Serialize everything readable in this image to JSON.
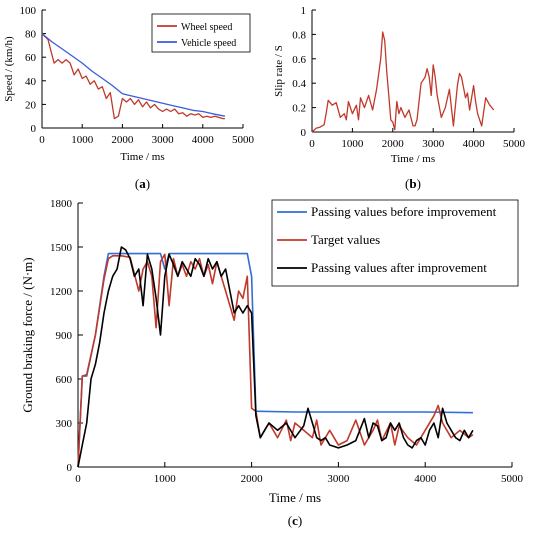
{
  "chart_data": [
    {
      "id": "a",
      "type": "line",
      "panel_label": "a",
      "xlabel": "Time / ms",
      "ylabel": "Speed / (km/h)",
      "xlim": [
        0,
        5000
      ],
      "ylim": [
        0,
        100
      ],
      "xticks": [
        "0",
        "1000",
        "2000",
        "3000",
        "4000",
        "5000"
      ],
      "yticks": [
        "0",
        "20",
        "40",
        "60",
        "80",
        "100"
      ],
      "legend_position": "top-right",
      "series": [
        {
          "name": "Wheel speed",
          "color": "#c0392b",
          "x": [
            0,
            150,
            300,
            400,
            500,
            600,
            700,
            800,
            900,
            1000,
            1100,
            1200,
            1300,
            1400,
            1500,
            1600,
            1700,
            1800,
            1900,
            2000,
            2100,
            2200,
            2300,
            2400,
            2500,
            2600,
            2700,
            2800,
            2900,
            3000,
            3100,
            3200,
            3300,
            3400,
            3500,
            3600,
            3700,
            3800,
            3900,
            4000,
            4100,
            4200,
            4300,
            4400,
            4500,
            4550
          ],
          "values": [
            80,
            75,
            55,
            58,
            55,
            58,
            55,
            45,
            50,
            42,
            44,
            37,
            40,
            33,
            35,
            25,
            30,
            8,
            10,
            25,
            22,
            25,
            20,
            24,
            18,
            22,
            17,
            20,
            16,
            14,
            16,
            14,
            16,
            12,
            13,
            10,
            12,
            11,
            12,
            9,
            10,
            9,
            10,
            9,
            8,
            8
          ]
        },
        {
          "name": "Vehicle speed",
          "color": "#3b5bdb",
          "x": [
            0,
            250,
            500,
            750,
            1000,
            1250,
            1500,
            1750,
            2000,
            2250,
            2500,
            2750,
            3000,
            3250,
            3500,
            3750,
            4000,
            4250,
            4550
          ],
          "values": [
            80,
            73,
            67,
            61,
            55,
            48,
            42,
            36,
            29,
            27,
            25,
            23,
            21,
            19,
            17,
            15,
            14,
            12,
            10
          ]
        }
      ]
    },
    {
      "id": "b",
      "type": "line",
      "panel_label": "b",
      "xlabel": "Time / ms",
      "ylabel": "Slip rate / S",
      "xlim": [
        0,
        5000
      ],
      "ylim": [
        0,
        1
      ],
      "xticks": [
        "0",
        "1000",
        "2000",
        "3000",
        "4000",
        "5000"
      ],
      "yticks": [
        "0",
        "0.2",
        "0.4",
        "0.6",
        "0.8",
        "1"
      ],
      "series": [
        {
          "color": "#c0392b",
          "x": [
            0,
            100,
            200,
            300,
            350,
            400,
            500,
            600,
            700,
            800,
            850,
            900,
            1000,
            1100,
            1150,
            1200,
            1300,
            1400,
            1500,
            1600,
            1700,
            1750,
            1800,
            1850,
            1900,
            1950,
            2000,
            2050,
            2100,
            2150,
            2200,
            2300,
            2400,
            2500,
            2550,
            2600,
            2700,
            2800,
            2850,
            2900,
            2950,
            3000,
            3050,
            3100,
            3200,
            3300,
            3400,
            3500,
            3600,
            3650,
            3700,
            3800,
            3850,
            3900,
            4000,
            4050,
            4100,
            4200,
            4300,
            4400,
            4500
          ],
          "values": [
            0,
            0.03,
            0.04,
            0.06,
            0.15,
            0.26,
            0.22,
            0.24,
            0.12,
            0.15,
            0.1,
            0.25,
            0.15,
            0.22,
            0.1,
            0.28,
            0.2,
            0.3,
            0.18,
            0.35,
            0.6,
            0.82,
            0.75,
            0.5,
            0.3,
            0.1,
            0.08,
            0.02,
            0.25,
            0.15,
            0.2,
            0.12,
            0.18,
            0.05,
            0.05,
            0.1,
            0.4,
            0.45,
            0.52,
            0.45,
            0.3,
            0.55,
            0.45,
            0.3,
            0.12,
            0.2,
            0.35,
            0.05,
            0.38,
            0.48,
            0.45,
            0.28,
            0.32,
            0.18,
            0.38,
            0.25,
            0.15,
            0.05,
            0.28,
            0.22,
            0.18
          ]
        }
      ]
    },
    {
      "id": "c",
      "type": "line",
      "panel_label": "c",
      "xlabel": "Time / ms",
      "ylabel": "Ground braking force / (N·m)",
      "xlim": [
        0,
        5000
      ],
      "ylim": [
        0,
        1800
      ],
      "xticks": [
        "0",
        "1000",
        "2000",
        "3000",
        "4000",
        "5000"
      ],
      "yticks": [
        "0",
        "300",
        "600",
        "900",
        "1200",
        "1500",
        "1800"
      ],
      "legend_position": "top-right",
      "series": [
        {
          "name": "Passing values before improvement",
          "color": "#2f6fd6",
          "x": [
            0,
            50,
            100,
            200,
            300,
            350,
            400,
            450,
            500,
            600,
            700,
            750,
            800,
            900,
            950,
            1000,
            1050,
            1100,
            1150,
            1200,
            1300,
            1400,
            1500,
            1600,
            1700,
            1750,
            1800,
            1850,
            1900,
            1950,
            2000,
            2050,
            2100,
            2500,
            3000,
            3500,
            4000,
            4550
          ],
          "values": [
            0,
            620,
            620,
            900,
            1300,
            1455,
            1455,
            1455,
            1455,
            1455,
            1455,
            1455,
            1455,
            1455,
            1455,
            1350,
            1455,
            1455,
            1455,
            1455,
            1455,
            1455,
            1455,
            1455,
            1455,
            1455,
            1455,
            1455,
            1455,
            1455,
            1300,
            380,
            380,
            375,
            375,
            375,
            375,
            370
          ]
        },
        {
          "name": "Target values",
          "color": "#c0392b",
          "x": [
            0,
            50,
            100,
            200,
            300,
            350,
            400,
            500,
            600,
            700,
            750,
            800,
            850,
            900,
            950,
            1000,
            1050,
            1100,
            1150,
            1200,
            1250,
            1300,
            1350,
            1400,
            1450,
            1500,
            1550,
            1600,
            1650,
            1700,
            1750,
            1800,
            1850,
            1900,
            1950,
            2000,
            2050,
            2100,
            2150,
            2200,
            2300,
            2400,
            2450,
            2500,
            2600,
            2700,
            2750,
            2800,
            2900,
            3000,
            3100,
            3200,
            3300,
            3400,
            3450,
            3500,
            3600,
            3650,
            3700,
            3800,
            3900,
            4000,
            4100,
            4150,
            4200,
            4300,
            4400,
            4500,
            4550
          ],
          "values": [
            0,
            620,
            630,
            900,
            1280,
            1420,
            1440,
            1440,
            1430,
            1200,
            1350,
            1400,
            1300,
            950,
            1400,
            1450,
            1100,
            1420,
            1300,
            1380,
            1300,
            1400,
            1350,
            1420,
            1300,
            1380,
            1250,
            1400,
            1300,
            1200,
            1100,
            1000,
            1200,
            1150,
            1300,
            400,
            380,
            200,
            250,
            300,
            200,
            320,
            180,
            300,
            250,
            200,
            320,
            150,
            250,
            150,
            180,
            320,
            150,
            250,
            320,
            180,
            300,
            150,
            280,
            200,
            150,
            250,
            350,
            420,
            300,
            200,
            250,
            200,
            220
          ]
        },
        {
          "name": "Passing values after improvement",
          "color": "#000000",
          "x": [
            0,
            50,
            100,
            150,
            200,
            250,
            300,
            350,
            400,
            450,
            500,
            550,
            600,
            650,
            700,
            750,
            800,
            850,
            900,
            950,
            1000,
            1050,
            1100,
            1150,
            1200,
            1250,
            1300,
            1350,
            1400,
            1450,
            1500,
            1550,
            1600,
            1650,
            1700,
            1750,
            1800,
            1850,
            1900,
            1950,
            2000,
            2050,
            2100,
            2150,
            2200,
            2300,
            2400,
            2500,
            2600,
            2650,
            2700,
            2750,
            2800,
            2850,
            2900,
            3000,
            3100,
            3200,
            3300,
            3350,
            3400,
            3450,
            3500,
            3550,
            3600,
            3650,
            3700,
            3750,
            3800,
            3850,
            3900,
            3950,
            4000,
            4050,
            4100,
            4150,
            4200,
            4250,
            4300,
            4350,
            4400,
            4450,
            4500,
            4550
          ],
          "values": [
            0,
            150,
            300,
            600,
            700,
            850,
            1050,
            1200,
            1300,
            1350,
            1500,
            1480,
            1420,
            1300,
            1350,
            1100,
            1450,
            1350,
            1150,
            900,
            1300,
            1450,
            1380,
            1300,
            1400,
            1350,
            1300,
            1420,
            1380,
            1300,
            1420,
            1350,
            1400,
            1300,
            1350,
            1200,
            1050,
            1100,
            1050,
            1100,
            1050,
            350,
            200,
            250,
            300,
            250,
            300,
            200,
            280,
            400,
            300,
            200,
            180,
            200,
            150,
            130,
            150,
            180,
            330,
            200,
            300,
            280,
            180,
            200,
            300,
            250,
            300,
            200,
            150,
            130,
            180,
            200,
            150,
            250,
            300,
            200,
            400,
            300,
            250,
            200,
            180,
            250,
            200,
            250
          ]
        }
      ]
    }
  ]
}
